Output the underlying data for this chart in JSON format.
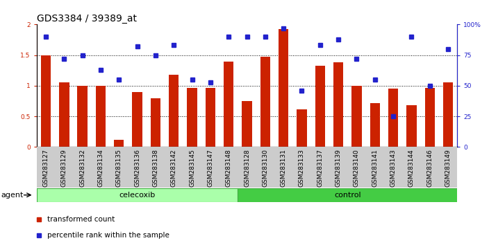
{
  "title": "GDS3384 / 39389_at",
  "samples": [
    "GSM283127",
    "GSM283129",
    "GSM283132",
    "GSM283134",
    "GSM283135",
    "GSM283136",
    "GSM283138",
    "GSM283142",
    "GSM283145",
    "GSM283147",
    "GSM283148",
    "GSM283128",
    "GSM283130",
    "GSM283131",
    "GSM283133",
    "GSM283137",
    "GSM283139",
    "GSM283140",
    "GSM283141",
    "GSM283143",
    "GSM283144",
    "GSM283146",
    "GSM283149"
  ],
  "bar_values": [
    1.5,
    1.05,
    1.0,
    1.0,
    0.12,
    0.9,
    0.8,
    1.18,
    0.97,
    0.97,
    1.4,
    0.75,
    1.47,
    1.93,
    0.62,
    1.33,
    1.38,
    1.0,
    0.72,
    0.95,
    0.68,
    0.97,
    1.06
  ],
  "percentile_values": [
    90,
    72,
    75,
    63,
    55,
    82,
    75,
    83,
    55,
    53,
    90,
    90,
    90,
    97,
    46,
    83,
    88,
    72,
    55,
    25,
    90,
    50,
    80
  ],
  "celecoxib_count": 11,
  "control_count": 12,
  "bar_color": "#CC2200",
  "dot_color": "#2222CC",
  "ylim": [
    0,
    2.0
  ],
  "y2lim": [
    0,
    100
  ],
  "yticks": [
    0,
    0.5,
    1.0,
    1.5,
    2.0
  ],
  "ytick_labels": [
    "0",
    "0.5",
    "1",
    "1.5",
    "2"
  ],
  "y2ticks": [
    0,
    25,
    50,
    75,
    100
  ],
  "y2tick_labels": [
    "0",
    "25",
    "50",
    "75",
    "100%"
  ],
  "agent_label": "agent",
  "group1_label": "celecoxib",
  "group2_label": "control",
  "legend1": "transformed count",
  "legend2": "percentile rank within the sample",
  "title_fontsize": 10,
  "tick_fontsize": 6.5,
  "band_fontsize": 8,
  "legend_fontsize": 7.5,
  "light_green": "#AAFFAA",
  "dark_green": "#44CC44",
  "grey_tick_bg": "#CCCCCC"
}
